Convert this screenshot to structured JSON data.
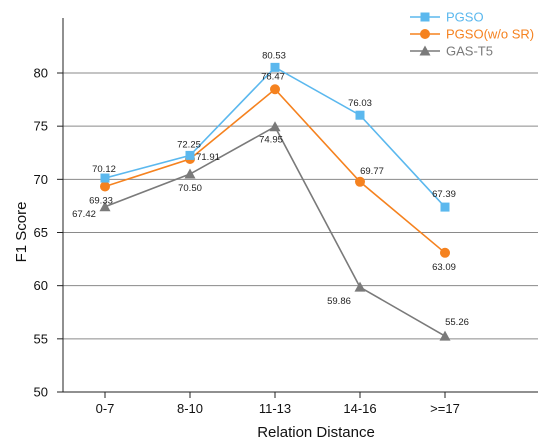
{
  "chart_data": {
    "type": "line",
    "xlabel": "Relation Distance",
    "ylabel": "F1 Score",
    "categories": [
      "0-7",
      "8-10",
      "11-13",
      "14-16",
      ">=17"
    ],
    "ylim": [
      50,
      80
    ],
    "yticks": [
      50,
      55,
      60,
      65,
      70,
      75,
      80
    ],
    "grid": true,
    "legend_position": "top-right",
    "series": [
      {
        "name": "PGSO",
        "marker": "square",
        "color": "#5bb8ee",
        "values": [
          70.12,
          72.25,
          80.53,
          76.03,
          67.39
        ],
        "labels": [
          "70.12",
          "72.25",
          "80.53",
          "76.03",
          "67.39"
        ]
      },
      {
        "name": "PGSO(w/o SR)",
        "marker": "circle",
        "color": "#f5821f",
        "values": [
          69.33,
          71.91,
          78.47,
          69.77,
          63.09
        ],
        "labels": [
          "69.33",
          "71.91",
          "78.47",
          "69.77",
          "63.09"
        ]
      },
      {
        "name": "GAS-T5",
        "marker": "triangle",
        "color": "#7a7a7a",
        "values": [
          67.42,
          70.5,
          74.95,
          59.86,
          55.26
        ],
        "labels": [
          "67.42",
          "70.50",
          "74.95",
          "59.86",
          "55.26"
        ]
      }
    ]
  }
}
